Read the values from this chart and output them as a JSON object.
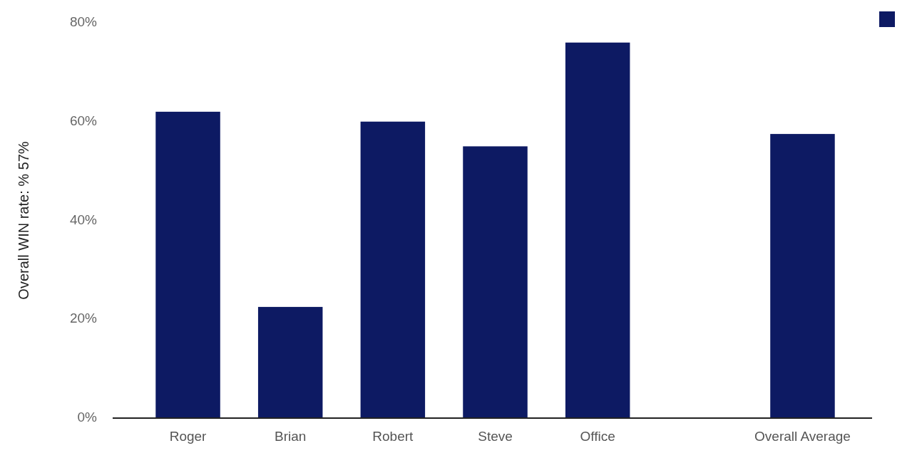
{
  "chart_data": {
    "type": "bar",
    "ylabel": "Overall WIN rate: % 57%",
    "categories": [
      "Roger",
      "Brian",
      "Robert",
      "Steve",
      "Office",
      null,
      "Overall Average"
    ],
    "series": [
      {
        "color": "#0d1a63",
        "values": [
          62,
          22.5,
          60,
          55,
          76,
          null,
          57.5
        ]
      }
    ],
    "ylim": [
      0,
      80
    ],
    "yticks": [
      {
        "value": 0,
        "label": "0%"
      },
      {
        "value": 20,
        "label": "20%"
      },
      {
        "value": 40,
        "label": "40%"
      },
      {
        "value": 60,
        "label": "60%"
      },
      {
        "value": 80,
        "label": "80%"
      }
    ],
    "grid": false
  }
}
